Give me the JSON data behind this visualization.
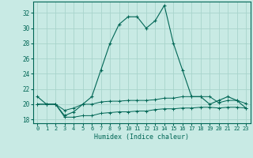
{
  "xlabel": "Humidex (Indice chaleur)",
  "background_color": "#c8eae4",
  "grid_color": "#a8d4cc",
  "line_color": "#006655",
  "x_values": [
    0,
    1,
    2,
    3,
    4,
    5,
    6,
    7,
    8,
    9,
    10,
    11,
    12,
    13,
    14,
    15,
    16,
    17,
    18,
    19,
    20,
    21,
    22,
    23
  ],
  "line1_y": [
    21,
    20,
    20,
    18.5,
    19,
    20,
    21,
    24.5,
    28,
    30.5,
    31.5,
    31.5,
    30,
    31,
    33,
    28,
    24.5,
    21,
    21,
    20,
    20.5,
    21,
    20.5,
    19.5
  ],
  "line2_y": [
    20,
    20,
    20,
    19.2,
    19.5,
    20,
    20,
    20.3,
    20.4,
    20.4,
    20.5,
    20.5,
    20.5,
    20.6,
    20.8,
    20.8,
    21,
    21,
    21,
    21,
    20.2,
    20.5,
    20.5,
    20.1
  ],
  "line3_y": [
    20,
    20,
    20,
    18.3,
    18.3,
    18.5,
    18.5,
    18.8,
    18.9,
    19,
    19,
    19.1,
    19.1,
    19.3,
    19.4,
    19.4,
    19.5,
    19.5,
    19.6,
    19.6,
    19.5,
    19.6,
    19.6,
    19.5
  ],
  "ylim": [
    17.5,
    33.5
  ],
  "xlim": [
    -0.5,
    23.5
  ],
  "yticks": [
    18,
    20,
    22,
    24,
    26,
    28,
    30,
    32
  ],
  "xticks": [
    0,
    1,
    2,
    3,
    4,
    5,
    6,
    7,
    8,
    9,
    10,
    11,
    12,
    13,
    14,
    15,
    16,
    17,
    18,
    19,
    20,
    21,
    22,
    23
  ],
  "fig_width": 3.2,
  "fig_height": 2.0,
  "dpi": 100
}
